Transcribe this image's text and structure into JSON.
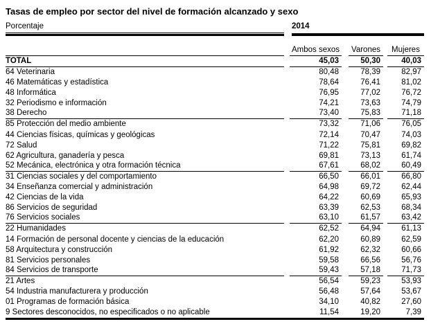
{
  "chart_data": {
    "type": "table",
    "title": "Tasas de empleo por sector del nivel de formación alcanzado y sexo",
    "unit_label": "Porcentaje",
    "period": "2014",
    "columns": [
      "Ambos sexos",
      "Varones",
      "Mujeres"
    ],
    "total_row": {
      "label": "TOTAL",
      "values": [
        "45,03",
        "50,30",
        "40,03"
      ]
    },
    "rows": [
      {
        "label": "64 Veterinaria",
        "values": [
          "80,48",
          "78,39",
          "82,97"
        ],
        "separator_after": false
      },
      {
        "label": "46 Matemáticas y estadística",
        "values": [
          "78,64",
          "76,41",
          "81,02"
        ],
        "separator_after": false
      },
      {
        "label": "48 Informática",
        "values": [
          "76,95",
          "77,02",
          "76,72"
        ],
        "separator_after": false
      },
      {
        "label": "32 Periodismo e información",
        "values": [
          "74,21",
          "73,63",
          "74,79"
        ],
        "separator_after": false
      },
      {
        "label": "38 Derecho",
        "values": [
          "73,40",
          "75,83",
          "71,18"
        ],
        "separator_after": true
      },
      {
        "label": "85 Protección del medio ambiente",
        "values": [
          "73,32",
          "71,06",
          "76,05"
        ],
        "separator_after": false
      },
      {
        "label": "44 Ciencias físicas, químicas y geológicas",
        "values": [
          "72,14",
          "70,47",
          "74,03"
        ],
        "separator_after": false
      },
      {
        "label": "72 Salud",
        "values": [
          "71,22",
          "75,81",
          "69,82"
        ],
        "separator_after": false
      },
      {
        "label": "62 Agricultura, ganadería y pesca",
        "values": [
          "69,81",
          "73,13",
          "61,74"
        ],
        "separator_after": false
      },
      {
        "label": "52 Mecánica, electrónica y otra formación técnica",
        "values": [
          "67,61",
          "68,02",
          "60,49"
        ],
        "separator_after": true
      },
      {
        "label": "31 Ciencias sociales y del comportamiento",
        "values": [
          "66,50",
          "66,01",
          "66,80"
        ],
        "separator_after": false
      },
      {
        "label": "34 Enseñanza comercial y administración",
        "values": [
          "64,98",
          "69,72",
          "62,44"
        ],
        "separator_after": false
      },
      {
        "label": "42 Ciencias de la vida",
        "values": [
          "64,22",
          "60,69",
          "65,93"
        ],
        "separator_after": false
      },
      {
        "label": "86 Servicios de seguridad",
        "values": [
          "63,39",
          "62,53",
          "68,34"
        ],
        "separator_after": false
      },
      {
        "label": "76 Servicios sociales",
        "values": [
          "63,10",
          "61,57",
          "63,42"
        ],
        "separator_after": true
      },
      {
        "label": "22 Humanidades",
        "values": [
          "62,52",
          "64,94",
          "61,13"
        ],
        "separator_after": false
      },
      {
        "label": "14 Formación de personal docente y ciencias de la educación",
        "values": [
          "62,20",
          "60,89",
          "62,59"
        ],
        "separator_after": false
      },
      {
        "label": "58 Arquitectura y construcción",
        "values": [
          "61,92",
          "62,32",
          "60,66"
        ],
        "separator_after": false
      },
      {
        "label": "81 Servicios personales",
        "values": [
          "59,58",
          "66,56",
          "56,76"
        ],
        "separator_after": false
      },
      {
        "label": "84 Servicios de transporte",
        "values": [
          "59,43",
          "57,18",
          "71,73"
        ],
        "separator_after": true
      },
      {
        "label": "21 Artes",
        "values": [
          "56,54",
          "59,23",
          "53,93"
        ],
        "separator_after": false
      },
      {
        "label": "54 Industria manufacturera y producción",
        "values": [
          "56,48",
          "57,64",
          "53,67"
        ],
        "separator_after": false
      },
      {
        "label": "01 Programas de formación básica",
        "values": [
          "34,10",
          "40,82",
          "27,60"
        ],
        "separator_after": false
      },
      {
        "label": "9 Sectores desconocidos, no especificados o no aplicable",
        "values": [
          "11,54",
          "19,20",
          "7,39"
        ],
        "separator_after": false
      }
    ],
    "colors": {
      "text": "#000000",
      "rules": "#000000",
      "background": "#ffffff"
    }
  }
}
